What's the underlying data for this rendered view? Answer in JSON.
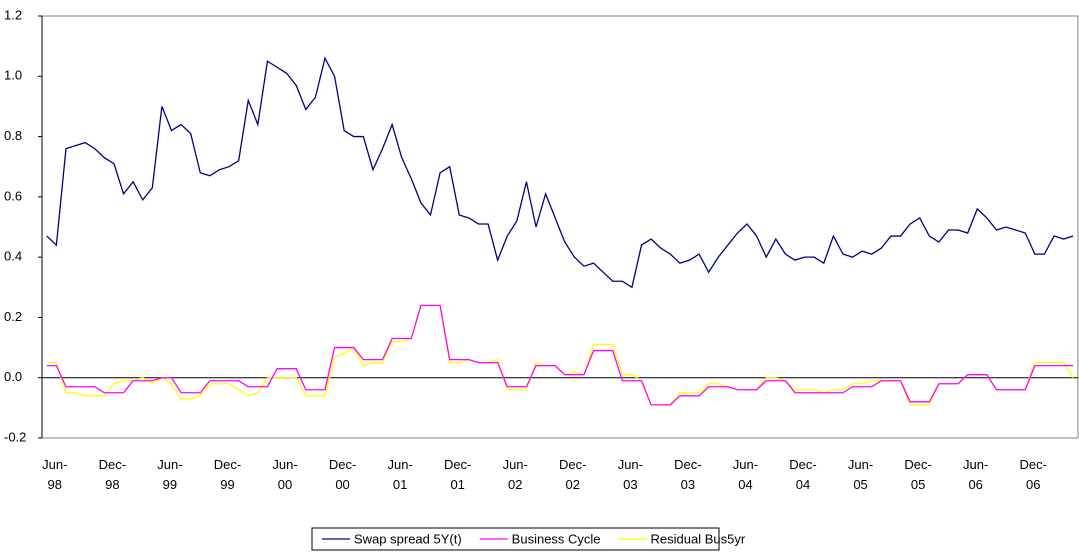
{
  "chart_data": {
    "type": "line",
    "categories": [
      "Jun-98",
      null,
      null,
      null,
      null,
      null,
      "Dec-98",
      null,
      null,
      null,
      null,
      null,
      "Jun-99",
      null,
      null,
      null,
      null,
      null,
      "Dec-99",
      null,
      null,
      null,
      null,
      null,
      "Jun-00",
      null,
      null,
      null,
      null,
      null,
      "Dec-00",
      null,
      null,
      null,
      null,
      null,
      "Jun-01",
      null,
      null,
      null,
      null,
      null,
      "Dec-01",
      null,
      null,
      null,
      null,
      null,
      "Jun-02",
      null,
      null,
      null,
      null,
      null,
      "Dec-02",
      null,
      null,
      null,
      null,
      null,
      "Jun-03",
      null,
      null,
      null,
      null,
      null,
      "Dec-03",
      null,
      null,
      null,
      null,
      null,
      "Jun-04",
      null,
      null,
      null,
      null,
      null,
      "Dec-04",
      null,
      null,
      null,
      null,
      null,
      "Jun-05",
      null,
      null,
      null,
      null,
      null,
      "Dec-05",
      null,
      null,
      null,
      null,
      null,
      "Jun-06",
      null,
      null,
      null,
      null,
      null,
      "Dec-06",
      null,
      null,
      null,
      null,
      null
    ],
    "series": [
      {
        "name": "Swap spread 5Y(t)",
        "color": "#000080",
        "values": [
          0.47,
          0.44,
          0.76,
          0.77,
          0.78,
          0.76,
          0.73,
          0.71,
          0.61,
          0.65,
          0.59,
          0.63,
          0.9,
          0.82,
          0.84,
          0.81,
          0.68,
          0.67,
          0.69,
          0.7,
          0.72,
          0.92,
          0.84,
          1.05,
          1.03,
          1.01,
          0.97,
          0.89,
          0.93,
          1.06,
          1.0,
          0.82,
          0.8,
          0.8,
          0.69,
          0.76,
          0.84,
          0.73,
          0.66,
          0.58,
          0.54,
          0.68,
          0.7,
          0.54,
          0.53,
          0.51,
          0.51,
          0.39,
          0.47,
          0.52,
          0.65,
          0.5,
          0.61,
          0.53,
          0.45,
          0.4,
          0.37,
          0.38,
          0.35,
          0.32,
          0.32,
          0.3,
          0.44,
          0.46,
          0.43,
          0.41,
          0.38,
          0.39,
          0.41,
          0.35,
          0.4,
          0.44,
          0.48,
          0.51,
          0.47,
          0.4,
          0.46,
          0.41,
          0.39,
          0.4,
          0.4,
          0.38,
          0.47,
          0.41,
          0.4,
          0.42,
          0.41,
          0.43,
          0.47,
          0.47,
          0.51,
          0.53,
          0.47,
          0.45,
          0.49,
          0.49,
          0.48,
          0.56,
          0.53,
          0.49,
          0.5,
          0.49,
          0.48,
          0.41,
          0.41,
          0.47,
          0.46,
          0.47
        ]
      },
      {
        "name": "Business Cycle",
        "color": "#ff00ff",
        "values": [
          0.04,
          0.04,
          -0.03,
          -0.03,
          -0.03,
          -0.03,
          -0.05,
          -0.05,
          -0.05,
          -0.01,
          -0.01,
          -0.01,
          0,
          0,
          -0.05,
          -0.05,
          -0.05,
          -0.01,
          -0.01,
          -0.01,
          -0.01,
          -0.03,
          -0.03,
          -0.03,
          0.03,
          0.03,
          0.03,
          -0.04,
          -0.04,
          -0.04,
          0.1,
          0.1,
          0.1,
          0.06,
          0.06,
          0.06,
          0.13,
          0.13,
          0.13,
          0.24,
          0.24,
          0.24,
          0.06,
          0.06,
          0.06,
          0.05,
          0.05,
          0.05,
          -0.03,
          -0.03,
          -0.03,
          0.04,
          0.04,
          0.04,
          0.01,
          0.01,
          0.01,
          0.09,
          0.09,
          0.09,
          -0.01,
          -0.01,
          -0.01,
          -0.09,
          -0.09,
          -0.09,
          -0.06,
          -0.06,
          -0.06,
          -0.03,
          -0.03,
          -0.03,
          -0.04,
          -0.04,
          -0.04,
          -0.01,
          -0.01,
          -0.01,
          -0.05,
          -0.05,
          -0.05,
          -0.05,
          -0.05,
          -0.05,
          -0.03,
          -0.03,
          -0.03,
          -0.01,
          -0.01,
          -0.01,
          -0.08,
          -0.08,
          -0.08,
          -0.02,
          -0.02,
          -0.02,
          0.01,
          0.01,
          0.01,
          -0.04,
          -0.04,
          -0.04,
          -0.04,
          0.04,
          0.04,
          0.04,
          0.04,
          0.04
        ]
      },
      {
        "name": "Residual Bus5yr",
        "color": "#ffff00",
        "values": [
          0.05,
          0.05,
          -0.05,
          -0.05,
          -0.06,
          -0.06,
          -0.06,
          -0.02,
          -0.01,
          -0.01,
          0,
          -0.02,
          0,
          -0.02,
          -0.07,
          -0.07,
          -0.06,
          -0.02,
          -0.02,
          -0.02,
          -0.04,
          -0.06,
          -0.05,
          0,
          0,
          0,
          0,
          -0.06,
          -0.06,
          -0.06,
          0.07,
          0.08,
          0.1,
          0.04,
          0.05,
          0.05,
          0.12,
          0.12,
          0.13,
          0.24,
          0.24,
          0.24,
          0.05,
          0.05,
          0.06,
          0.05,
          0.05,
          0.06,
          -0.04,
          -0.04,
          -0.04,
          0.05,
          0.04,
          0.04,
          0.01,
          0.02,
          0.01,
          0.11,
          0.11,
          0.11,
          0.01,
          0.01,
          -0.01,
          -0.09,
          -0.09,
          -0.09,
          -0.05,
          -0.05,
          -0.05,
          -0.02,
          -0.02,
          -0.03,
          -0.04,
          -0.04,
          -0.04,
          0,
          0,
          -0.01,
          -0.04,
          -0.04,
          -0.04,
          -0.05,
          -0.04,
          -0.04,
          -0.02,
          -0.02,
          -0.01,
          -0.01,
          -0.01,
          -0.01,
          -0.09,
          -0.09,
          -0.09,
          -0.02,
          -0.02,
          -0.02,
          0.01,
          0.01,
          0.01,
          -0.04,
          -0.04,
          -0.04,
          -0.04,
          0.05,
          0.05,
          0.05,
          0.05,
          0
        ]
      }
    ],
    "ylim": [
      -0.2,
      1.2
    ],
    "yticks": [
      -0.2,
      {
        "value": 0,
        "label": "0.0"
      },
      0.2,
      0.4,
      0.6,
      0.8,
      {
        "value": 1,
        "label": "1.0"
      },
      1.2
    ],
    "grid": false,
    "legend": "bottom"
  }
}
